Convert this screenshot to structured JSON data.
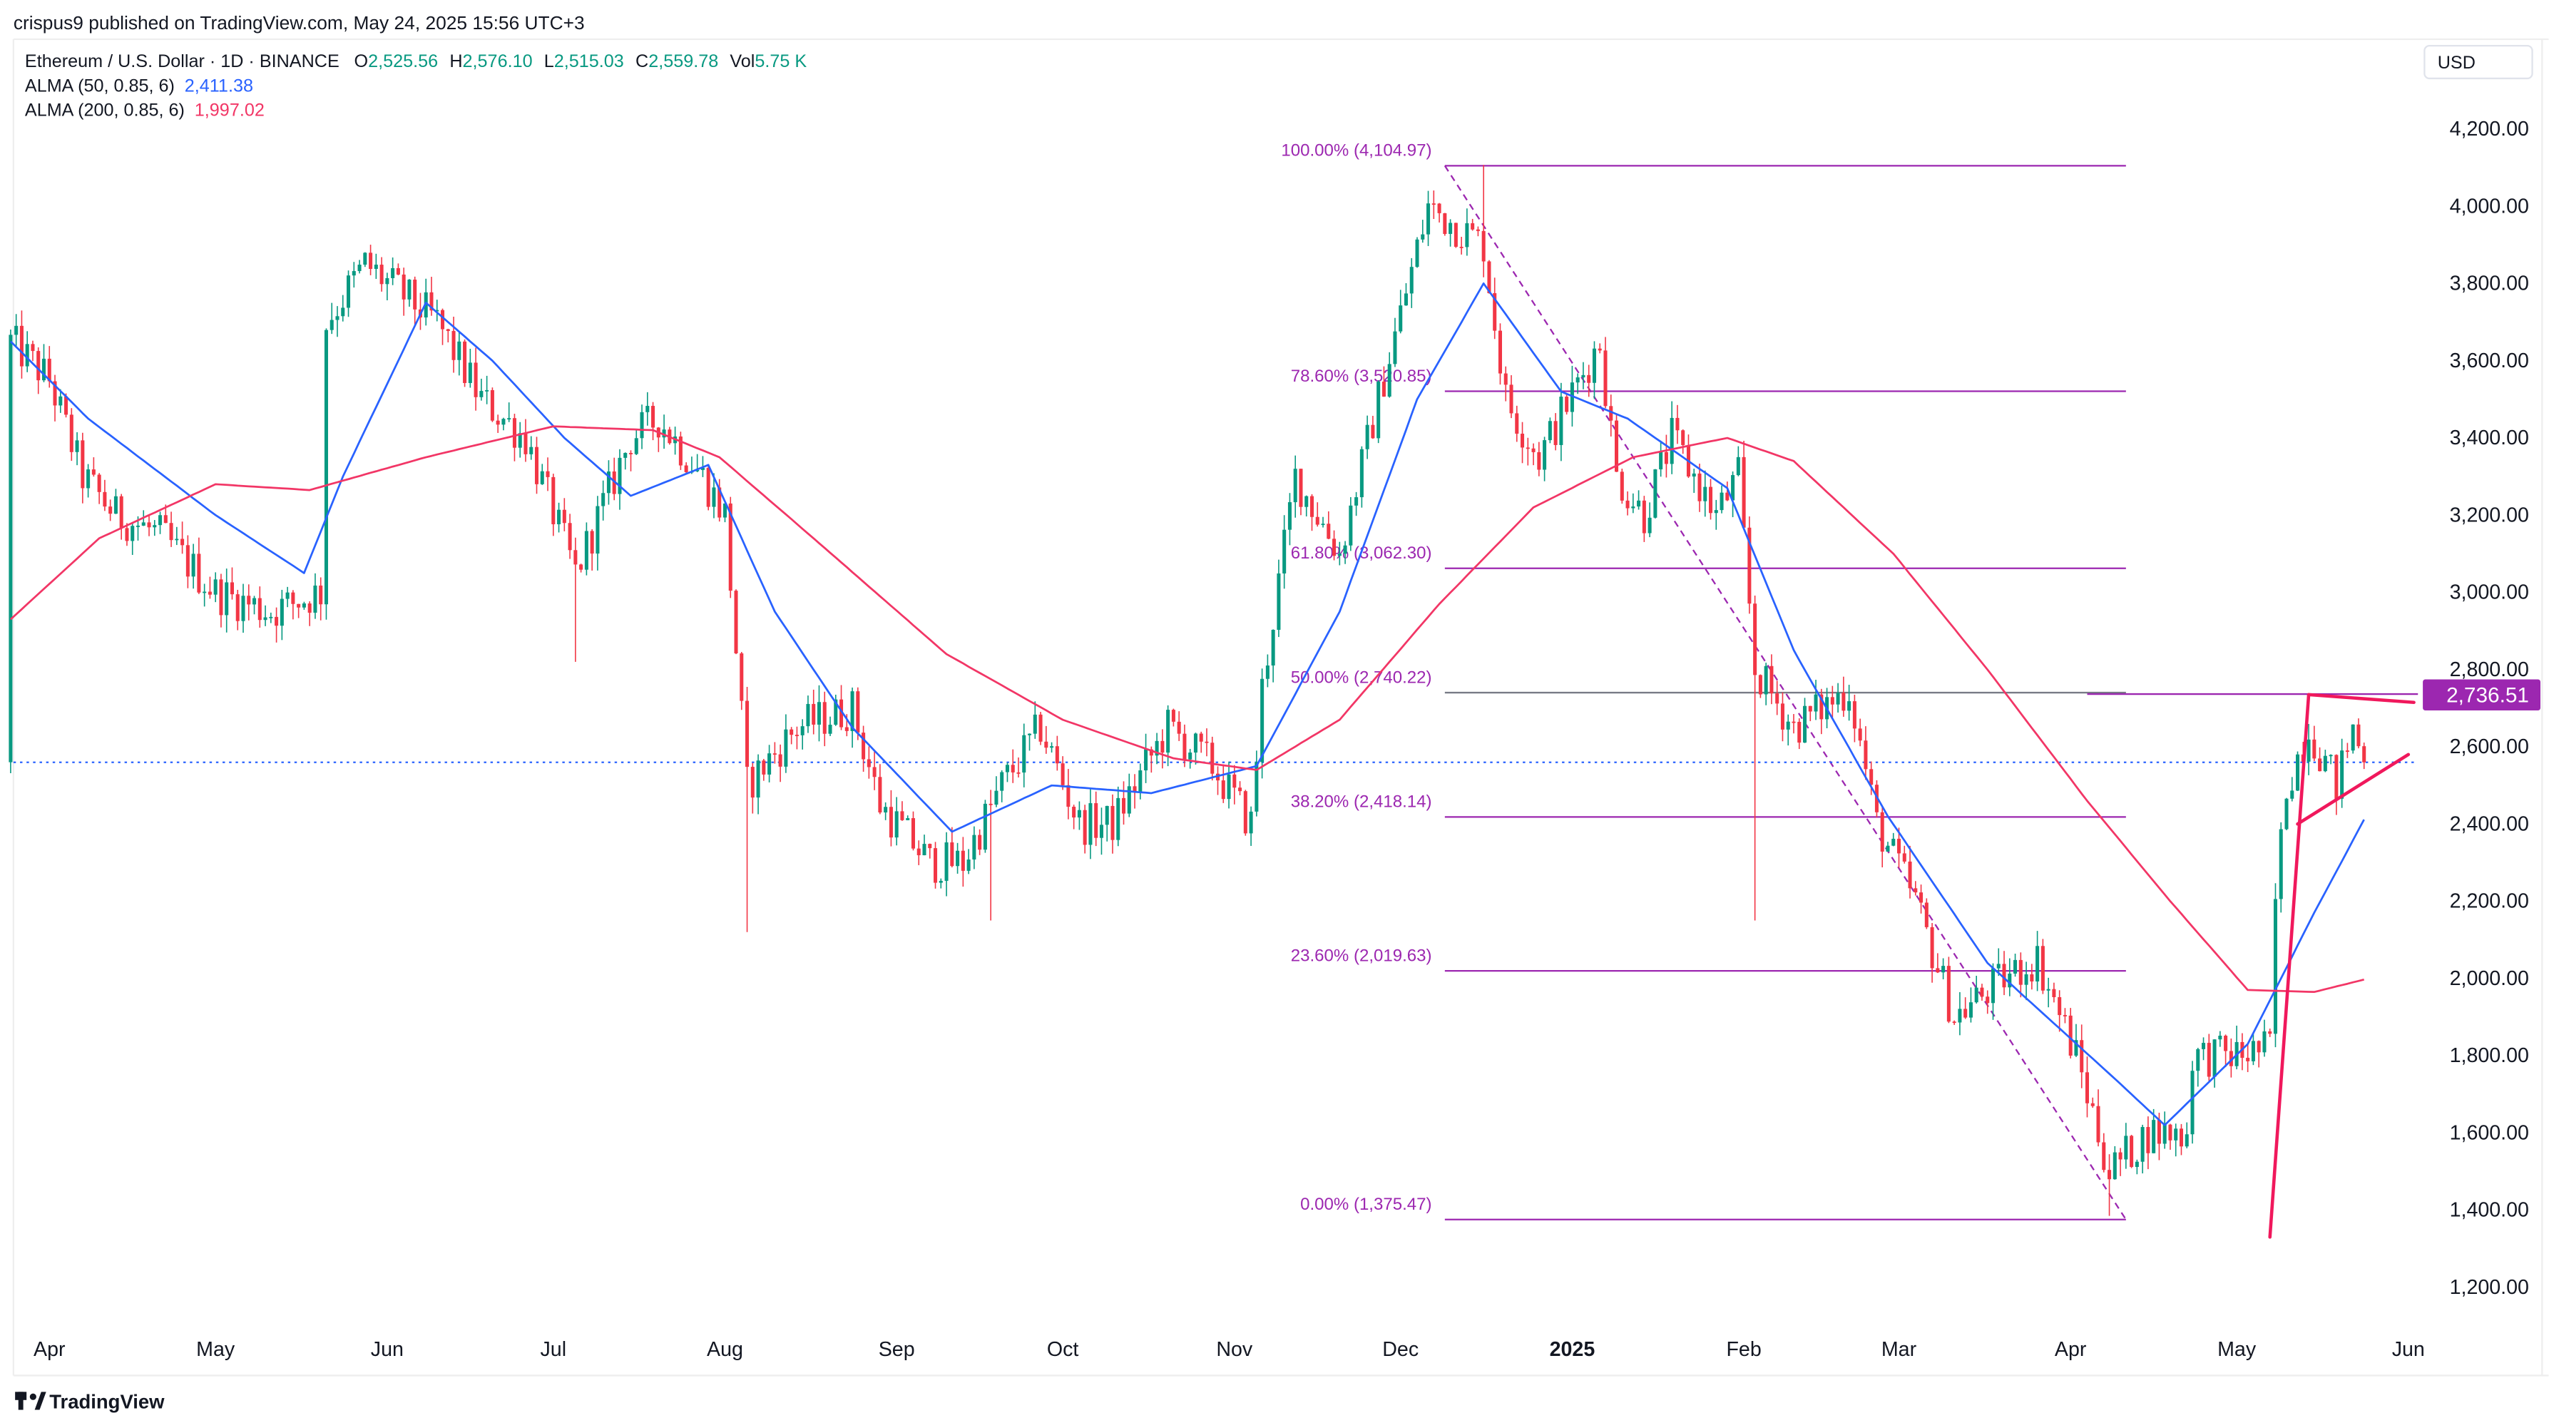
{
  "publisher_line": "crispus9 published on TradingView.com, May 24, 2025 15:56 UTC+3",
  "legend": {
    "symbol": "Ethereum / U.S. Dollar · 1D · BINANCE",
    "o_label": "O",
    "o": "2,525.56",
    "h_label": "H",
    "h": "2,576.10",
    "l_label": "L",
    "l": "2,515.03",
    "c_label": "C",
    "c": "2,559.78",
    "vol_label": "Vol",
    "vol": "5.75 K",
    "alma50_label": "ALMA (50, 0.85, 6)",
    "alma50": "2,411.38",
    "alma200_label": "ALMA (200, 0.85, 6)",
    "alma200": "1,997.02"
  },
  "currency": "USD",
  "brand": "TradingView",
  "colors": {
    "up": "#089981",
    "down": "#f23645",
    "alma50": "#2962ff",
    "alma200": "#f23666",
    "fib": "#9c27b0",
    "pattern": "#f0185c"
  },
  "chart_data": {
    "type": "candlestick",
    "title": "Ethereum / U.S. Dollar · 1D · BINANCE",
    "x_unit": "days since 2024-04-01",
    "ylim": [
      1100,
      4300
    ],
    "y_ticks": [
      "1,200.00",
      "1,400.00",
      "1,600.00",
      "1,800.00",
      "2,000.00",
      "2,200.00",
      "2,400.00",
      "2,600.00",
      "2,800.00",
      "3,000.00",
      "3,200.00",
      "3,400.00",
      "3,600.00",
      "3,800.00",
      "4,000.00",
      "4,200.00"
    ],
    "y_tick_values": [
      1200,
      1400,
      1600,
      1800,
      2000,
      2200,
      2400,
      2600,
      2800,
      3000,
      3200,
      3400,
      3600,
      3800,
      4000,
      4200
    ],
    "x_ticks": [
      {
        "label": "Apr",
        "day": 0
      },
      {
        "label": "May",
        "day": 30
      },
      {
        "label": "Jun",
        "day": 61
      },
      {
        "label": "Jul",
        "day": 91
      },
      {
        "label": "Aug",
        "day": 122
      },
      {
        "label": "Sep",
        "day": 153
      },
      {
        "label": "Oct",
        "day": 183
      },
      {
        "label": "Nov",
        "day": 214
      },
      {
        "label": "Dec",
        "day": 244
      },
      {
        "label": "2025",
        "day": 275,
        "bold": true
      },
      {
        "label": "Feb",
        "day": 306
      },
      {
        "label": "Mar",
        "day": 334
      },
      {
        "label": "Apr",
        "day": 365
      },
      {
        "label": "May",
        "day": 395
      },
      {
        "label": "Jun",
        "day": 426
      }
    ],
    "price_path": [
      [
        -7,
        3650
      ],
      [
        0,
        3550
      ],
      [
        6,
        3300
      ],
      [
        12,
        3200
      ],
      [
        20,
        3150
      ],
      [
        30,
        3000
      ],
      [
        40,
        2950
      ],
      [
        49,
        3000
      ],
      [
        50,
        3700
      ],
      [
        57,
        3850
      ],
      [
        70,
        3700
      ],
      [
        78,
        3500
      ],
      [
        86,
        3400
      ],
      [
        95,
        3050
      ],
      [
        105,
        3400
      ],
      [
        110,
        3450
      ],
      [
        118,
        3300
      ],
      [
        122,
        3200
      ],
      [
        126,
        2500
      ],
      [
        135,
        2650
      ],
      [
        145,
        2700
      ],
      [
        150,
        2450
      ],
      [
        159,
        2300
      ],
      [
        165,
        2300
      ],
      [
        172,
        2500
      ],
      [
        179,
        2650
      ],
      [
        186,
        2400
      ],
      [
        192,
        2400
      ],
      [
        202,
        2650
      ],
      [
        210,
        2550
      ],
      [
        217,
        2400
      ],
      [
        219,
        2750
      ],
      [
        225,
        3300
      ],
      [
        233,
        3100
      ],
      [
        240,
        3500
      ],
      [
        249,
        4000
      ],
      [
        259,
        3900
      ],
      [
        263,
        3500
      ],
      [
        269,
        3350
      ],
      [
        280,
        3650
      ],
      [
        283,
        3300
      ],
      [
        288,
        3200
      ],
      [
        293,
        3400
      ],
      [
        301,
        3200
      ],
      [
        305,
        3300
      ],
      [
        308,
        2800
      ],
      [
        315,
        2650
      ],
      [
        325,
        2750
      ],
      [
        330,
        2400
      ],
      [
        337,
        2200
      ],
      [
        344,
        1900
      ],
      [
        353,
        2000
      ],
      [
        359,
        2050
      ],
      [
        366,
        1800
      ],
      [
        372,
        1500
      ],
      [
        379,
        1600
      ],
      [
        386,
        1600
      ],
      [
        387,
        1800
      ],
      [
        395,
        1800
      ],
      [
        401,
        1820
      ],
      [
        402,
        2200
      ],
      [
        404,
        2500
      ],
      [
        408,
        2650
      ],
      [
        413,
        2500
      ],
      [
        416,
        2650
      ],
      [
        418,
        2560
      ]
    ],
    "extreme_wicks": [
      [
        126,
        2120
      ],
      [
        308,
        2150
      ],
      [
        372,
        1385
      ],
      [
        259,
        4107
      ],
      [
        170,
        2150
      ],
      [
        95,
        2820
      ]
    ],
    "last_close": 2559.78,
    "series": [
      {
        "name": "ALMA (50, 0.85, 6)",
        "points": [
          [
            -7,
            3650
          ],
          [
            7,
            3450
          ],
          [
            30,
            3200
          ],
          [
            46,
            3050
          ],
          [
            53,
            3300
          ],
          [
            68,
            3750
          ],
          [
            80,
            3600
          ],
          [
            93,
            3400
          ],
          [
            105,
            3250
          ],
          [
            119,
            3330
          ],
          [
            131,
            2950
          ],
          [
            145,
            2650
          ],
          [
            163,
            2380
          ],
          [
            181,
            2500
          ],
          [
            199,
            2480
          ],
          [
            218,
            2550
          ],
          [
            233,
            2950
          ],
          [
            247,
            3500
          ],
          [
            259,
            3800
          ],
          [
            273,
            3520
          ],
          [
            285,
            3450
          ],
          [
            303,
            3270
          ],
          [
            315,
            2850
          ],
          [
            332,
            2420
          ],
          [
            350,
            2040
          ],
          [
            373,
            1740
          ],
          [
            382,
            1620
          ],
          [
            397,
            1830
          ],
          [
            409,
            2170
          ],
          [
            418,
            2411.38
          ]
        ]
      },
      {
        "name": "ALMA (200, 0.85, 6)",
        "points": [
          [
            -7,
            2930
          ],
          [
            9,
            3140
          ],
          [
            30,
            3280
          ],
          [
            47,
            3265
          ],
          [
            68,
            3350
          ],
          [
            91,
            3430
          ],
          [
            109,
            3420
          ],
          [
            121,
            3350
          ],
          [
            138,
            3140
          ],
          [
            162,
            2840
          ],
          [
            183,
            2670
          ],
          [
            203,
            2570
          ],
          [
            218,
            2540
          ],
          [
            233,
            2670
          ],
          [
            251,
            2970
          ],
          [
            268,
            3220
          ],
          [
            286,
            3350
          ],
          [
            303,
            3400
          ],
          [
            315,
            3340
          ],
          [
            333,
            3100
          ],
          [
            350,
            2800
          ],
          [
            368,
            2460
          ],
          [
            383,
            2200
          ],
          [
            397,
            1970
          ],
          [
            409,
            1965
          ],
          [
            418,
            1997.02
          ]
        ]
      }
    ],
    "fibonacci": {
      "start_day": 252,
      "end_day": 375,
      "levels": [
        {
          "label": "100.00% (4,104.97)",
          "price": 4104.97
        },
        {
          "label": "78.60% (3,520.85)",
          "price": 3520.85
        },
        {
          "label": "61.80% (3,062.30)",
          "price": 3062.3
        },
        {
          "label": "50.00% (2,740.22)",
          "price": 2740.22,
          "neutral": true
        },
        {
          "label": "38.20% (2,418.14)",
          "price": 2418.14
        },
        {
          "label": "23.60% (2,019.63)",
          "price": 2019.63
        },
        {
          "label": "0.00% (1,375.47)",
          "price": 1375.47
        }
      ],
      "trend": [
        [
          252,
          4104.97
        ],
        [
          375,
          1375.47
        ]
      ]
    },
    "horizontal_level": {
      "label": "2,736.51",
      "price": 2736.51,
      "from_day": 368
    },
    "pattern_lines": [
      [
        [
          401,
          1330
        ],
        [
          408,
          2735
        ]
      ],
      [
        [
          408,
          2735
        ],
        [
          427,
          2715
        ]
      ],
      [
        [
          406,
          2400
        ],
        [
          426,
          2580
        ]
      ]
    ]
  }
}
